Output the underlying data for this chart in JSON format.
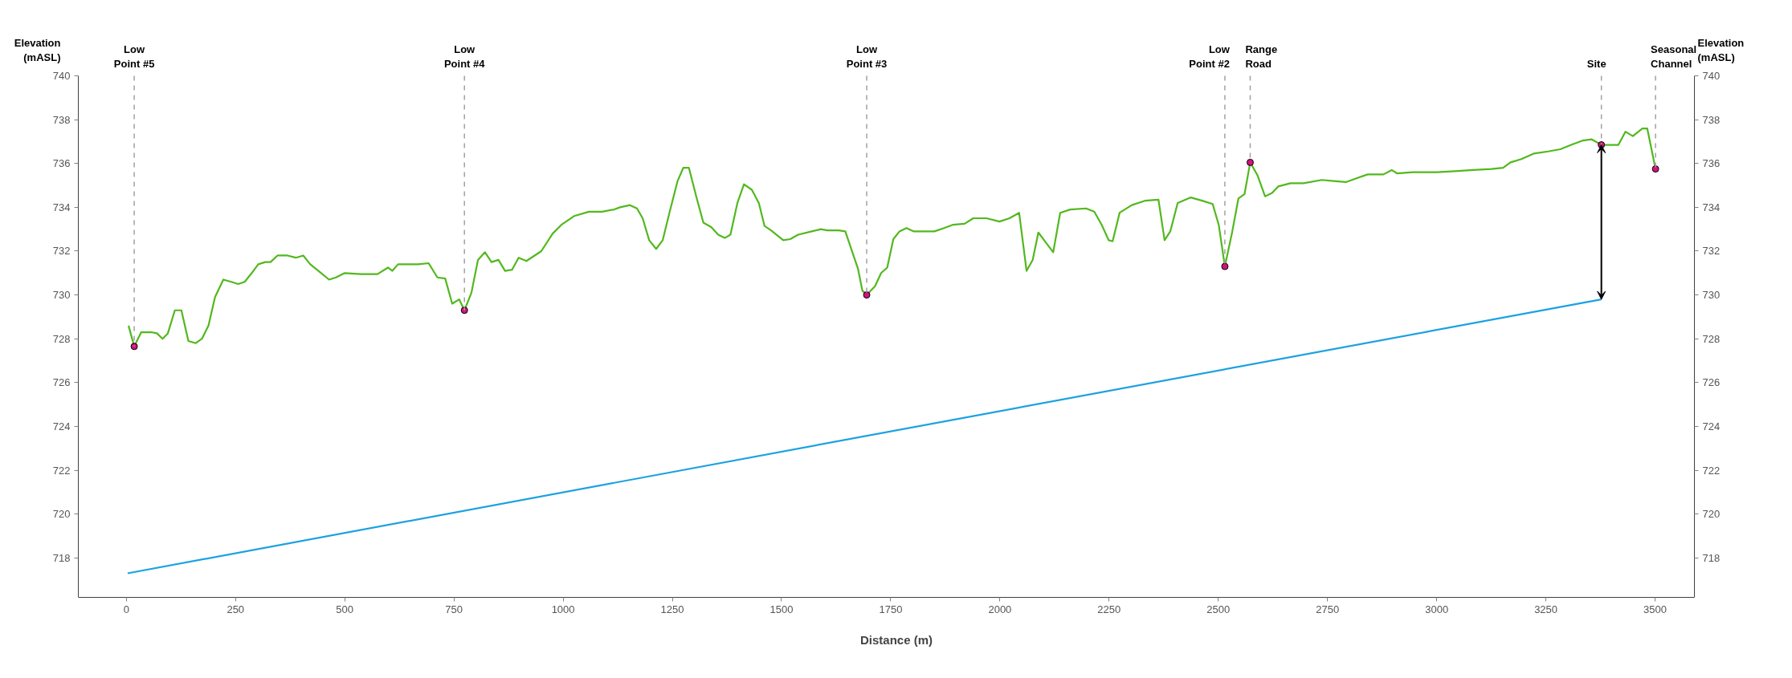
{
  "chart_data": {
    "type": "line",
    "xlabel": "Distance (m)",
    "ylabel": "Elevation\n(mASL)",
    "y2label": "Elevation\n(mASL)",
    "xlim": [
      -110,
      3590
    ],
    "xticks": [
      0,
      250,
      500,
      750,
      1000,
      1250,
      1500,
      1750,
      2000,
      2250,
      2500,
      2750,
      3000,
      3250,
      3500
    ],
    "ylim": [
      716.2,
      740
    ],
    "yticks": [
      718,
      720,
      722,
      724,
      726,
      728,
      730,
      732,
      734,
      736,
      738,
      740
    ],
    "y2lim": [
      716.2,
      740
    ],
    "y2ticks": [
      718,
      720,
      722,
      724,
      726,
      728,
      730,
      732,
      734,
      736,
      738,
      740
    ],
    "grid": false,
    "line_style": "solid",
    "series": [
      {
        "color": "#52b81e",
        "x": [
          5,
          18,
          34,
          57,
          70,
          83,
          95,
          111,
          126,
          142,
          159,
          173,
          188,
          203,
          222,
          240,
          256,
          271,
          287,
          302,
          318,
          330,
          346,
          369,
          388,
          405,
          421,
          446,
          464,
          480,
          500,
          537,
          575,
          599,
          609,
          622,
          640,
          668,
          692,
          712,
          730,
          746,
          762,
          774,
          790,
          805,
          821,
          836,
          852,
          867,
          883,
          898,
          916,
          950,
          976,
          996,
          1025,
          1059,
          1089,
          1117,
          1130,
          1153,
          1169,
          1182,
          1197,
          1213,
          1228,
          1244,
          1262,
          1275,
          1288,
          1306,
          1321,
          1339,
          1355,
          1370,
          1383,
          1399,
          1414,
          1432,
          1448,
          1461,
          1476,
          1504,
          1520,
          1538,
          1569,
          1590,
          1605,
          1618,
          1631,
          1646,
          1675,
          1685,
          1695,
          1714,
          1728,
          1742,
          1756,
          1770,
          1786,
          1803,
          1850,
          1872,
          1892,
          1919,
          1939,
          1969,
          1999,
          2022,
          2044,
          2061,
          2075,
          2088,
          2105,
          2122,
          2138,
          2161,
          2197,
          2216,
          2233,
          2249,
          2258,
          2274,
          2302,
          2332,
          2363,
          2377,
          2390,
          2407,
          2437,
          2463,
          2487,
          2501,
          2515,
          2532,
          2546,
          2560,
          2573,
          2590,
          2607,
          2623,
          2637,
          2665,
          2695,
          2737,
          2764,
          2792,
          2820,
          2842,
          2878,
          2897,
          2909,
          2945,
          3000,
          3041,
          3083,
          3125,
          3152,
          3169,
          3194,
          3222,
          3255,
          3283,
          3308,
          3335,
          3355,
          3377,
          3399,
          3416,
          3432,
          3449,
          3471,
          3482,
          3501
        ],
        "values": [
          728.6,
          727.65,
          728.3,
          728.3,
          728.25,
          728.0,
          728.25,
          729.3,
          729.3,
          727.9,
          727.8,
          728.0,
          728.6,
          729.9,
          730.7,
          730.6,
          730.5,
          730.6,
          731.0,
          731.4,
          731.5,
          731.5,
          731.8,
          731.8,
          731.7,
          731.8,
          731.4,
          731.0,
          730.7,
          730.8,
          731.0,
          730.95,
          730.95,
          731.25,
          731.1,
          731.4,
          731.4,
          731.4,
          731.45,
          730.8,
          730.75,
          729.6,
          729.8,
          729.3,
          730.1,
          731.6,
          731.95,
          731.5,
          731.6,
          731.1,
          731.15,
          731.7,
          731.55,
          732.0,
          732.8,
          733.2,
          733.6,
          733.8,
          733.8,
          733.9,
          734.0,
          734.1,
          733.95,
          733.5,
          732.5,
          732.1,
          732.5,
          733.8,
          735.2,
          735.8,
          735.8,
          734.4,
          733.3,
          733.1,
          732.75,
          732.6,
          732.75,
          734.2,
          735.05,
          734.8,
          734.2,
          733.15,
          732.95,
          732.5,
          732.55,
          732.75,
          732.9,
          733.0,
          732.95,
          732.95,
          732.95,
          732.9,
          731.2,
          730.2,
          730.0,
          730.4,
          731.0,
          731.25,
          732.55,
          732.9,
          733.05,
          732.9,
          732.9,
          733.05,
          733.2,
          733.25,
          733.5,
          733.5,
          733.35,
          733.5,
          733.75,
          731.1,
          731.6,
          732.85,
          732.4,
          731.95,
          733.75,
          733.9,
          733.95,
          733.8,
          733.2,
          732.5,
          732.45,
          733.75,
          734.1,
          734.3,
          734.35,
          732.5,
          732.9,
          734.2,
          734.45,
          734.3,
          734.15,
          733.2,
          731.3,
          732.9,
          734.4,
          734.6,
          736.05,
          735.45,
          734.5,
          734.65,
          734.95,
          735.1,
          735.1,
          735.25,
          735.2,
          735.15,
          735.35,
          735.5,
          735.5,
          735.7,
          735.55,
          735.6,
          735.6,
          735.65,
          735.7,
          735.75,
          735.8,
          736.05,
          736.2,
          736.45,
          736.55,
          736.65,
          736.85,
          737.05,
          737.1,
          736.85,
          736.85,
          736.85,
          737.45,
          737.25,
          737.6,
          737.6,
          735.75
        ]
      },
      {
        "color": "#1ba1e2",
        "x": [
          3,
          3377
        ],
        "values": [
          717.3,
          729.8
        ]
      },
      {
        "type": "scatter",
        "color": "#d4127e",
        "marker": "circle",
        "x": [
          18,
          774,
          1695,
          2515,
          2573,
          3377,
          3501
        ],
        "values": [
          727.65,
          729.3,
          730.0,
          731.3,
          736.05,
          736.85,
          735.75
        ]
      }
    ],
    "ref_lines": [
      {
        "axis": "x",
        "value": 18,
        "label": "Low\nPoint #5",
        "color": "#a0a0a0",
        "line_style": "dashed"
      },
      {
        "axis": "x",
        "value": 774,
        "label": "Low\nPoint #4",
        "color": "#a0a0a0",
        "line_style": "dashed"
      },
      {
        "axis": "x",
        "value": 1695,
        "label": "Low\nPoint #3",
        "color": "#a0a0a0",
        "line_style": "dashed"
      },
      {
        "axis": "x",
        "value": 2515,
        "label": "Low\nPoint #2",
        "color": "#a0a0a0",
        "line_style": "dashed"
      },
      {
        "axis": "x",
        "value": 2573,
        "label": "Range\nRoad",
        "color": "#a0a0a0",
        "line_style": "dashed"
      },
      {
        "axis": "x",
        "value": 3377,
        "label": "Site",
        "color": "#a0a0a0",
        "line_style": "dashed"
      },
      {
        "axis": "x",
        "value": 3501,
        "label": "Seasonal\nChannel",
        "color": "#a0a0a0",
        "line_style": "dashed"
      }
    ]
  }
}
